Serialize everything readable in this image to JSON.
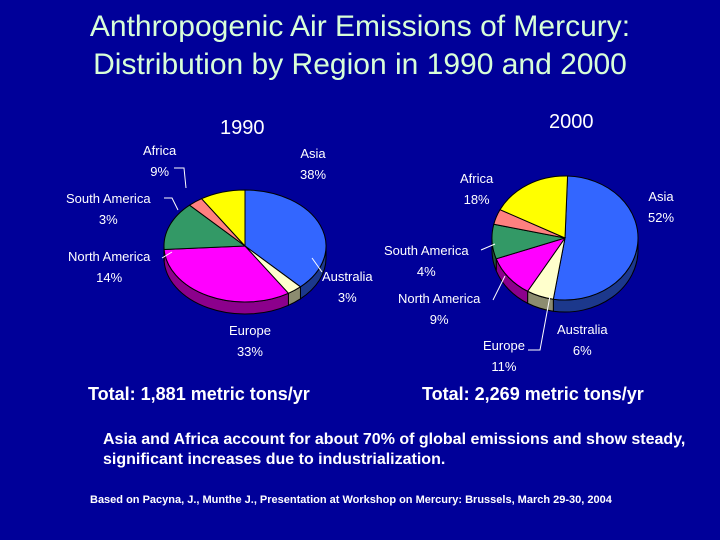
{
  "title_line1": "Anthropogenic Air Emissions of Mercury:",
  "title_line2": "Distribution by Region in 1990 and 2000",
  "chart_data": [
    {
      "type": "pie",
      "title": "1990",
      "total": "Total:  1,881 metric tons/yr",
      "slices": [
        {
          "name": "Asia",
          "value": 38,
          "label": "38%",
          "color": "#3366ff"
        },
        {
          "name": "Australia",
          "value": 3,
          "label": "3%",
          "color": "#ffffcc"
        },
        {
          "name": "Europe",
          "value": 33,
          "label": "33%",
          "color": "#ff00ff"
        },
        {
          "name": "North America",
          "value": 14,
          "label": "14%",
          "color": "#339966"
        },
        {
          "name": "South America",
          "value": 3,
          "label": "3%",
          "color": "#ff8080"
        },
        {
          "name": "Africa",
          "value": 9,
          "label": "9%",
          "color": "#ffff00"
        }
      ]
    },
    {
      "type": "pie",
      "title": "2000",
      "total": "Total:  2,269 metric tons/yr",
      "slices": [
        {
          "name": "Asia",
          "value": 52,
          "label": "52%",
          "color": "#3366ff"
        },
        {
          "name": "Australia",
          "value": 6,
          "label": "6%",
          "color": "#ffffcc"
        },
        {
          "name": "Europe",
          "value": 11,
          "label": "11%",
          "color": "#ff00ff"
        },
        {
          "name": "North America",
          "value": 9,
          "label": "9%",
          "color": "#339966"
        },
        {
          "name": "South America",
          "value": 4,
          "label": "4%",
          "color": "#ff8080"
        },
        {
          "name": "Africa",
          "value": 18,
          "label": "18%",
          "color": "#ffff00"
        }
      ]
    }
  ],
  "note": "Asia and Africa account for about 70% of global emissions and show steady, significant increases due to industrialization.",
  "source": "Based on  Pacyna, J., Munthe J., Presentation at Workshop on Mercury: Brussels, March 29-30, 2004"
}
